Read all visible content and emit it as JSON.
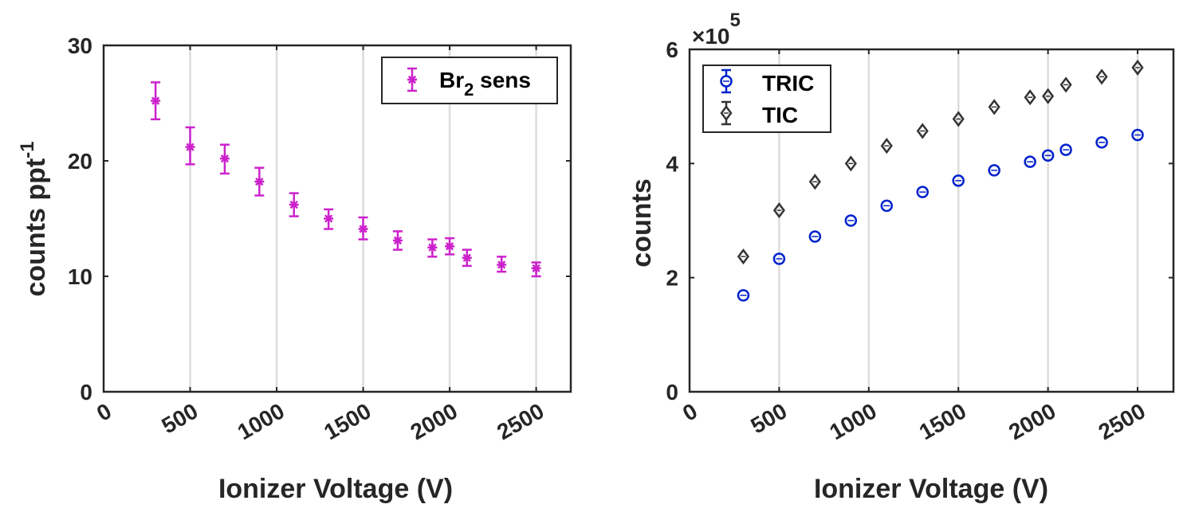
{
  "chart_data": [
    {
      "type": "scatter",
      "title": "",
      "xlabel": "Ionizer Voltage (V)",
      "ylabel": "counts ppt",
      "ylabel_superscript": "-1",
      "xlim": [
        0,
        2700
      ],
      "ylim": [
        0,
        30
      ],
      "xticks": [
        0,
        500,
        1000,
        1500,
        2000,
        2500
      ],
      "xtick_labels": [
        "0",
        "500",
        "1000",
        "1500",
        "2000",
        "2500"
      ],
      "yticks": [
        0,
        10,
        20,
        30
      ],
      "ytick_labels": [
        "0",
        "10",
        "20",
        "30"
      ],
      "grid": "x",
      "legend_position": "top-right",
      "series": [
        {
          "name": "Br2 sens",
          "legend_main": "Br",
          "legend_sub": "2",
          "legend_rest": " sens",
          "color": "#CC22CC",
          "marker": "asterisk",
          "x": [
            300,
            500,
            700,
            900,
            1100,
            1300,
            1500,
            1700,
            1900,
            2000,
            2100,
            2300,
            2500
          ],
          "y": [
            25.2,
            21.2,
            20.2,
            18.2,
            16.2,
            15.0,
            14.1,
            13.1,
            12.5,
            12.6,
            11.6,
            11.0,
            10.7
          ],
          "err_low": [
            23.6,
            19.7,
            18.9,
            17.0,
            15.2,
            14.1,
            13.2,
            12.3,
            11.7,
            11.9,
            10.9,
            10.4,
            10.0
          ],
          "err_high": [
            26.8,
            22.9,
            21.4,
            19.4,
            17.2,
            15.8,
            15.1,
            13.9,
            13.2,
            13.3,
            12.3,
            11.7,
            11.2
          ]
        }
      ]
    },
    {
      "type": "scatter",
      "title": "",
      "xlabel": "Ionizer Voltage (V)",
      "ylabel": "counts",
      "y_multiplier": "×10",
      "y_multiplier_exp": "5",
      "xlim": [
        0,
        2700
      ],
      "ylim": [
        0,
        6
      ],
      "xticks": [
        0,
        500,
        1000,
        1500,
        2000,
        2500
      ],
      "xtick_labels": [
        "0",
        "500",
        "1000",
        "1500",
        "2000",
        "2500"
      ],
      "yticks": [
        0,
        2,
        4,
        6
      ],
      "ytick_labels": [
        "0",
        "2",
        "4",
        "6"
      ],
      "grid": "x",
      "legend_position": "top-left",
      "series": [
        {
          "name": "TRIC",
          "color": "#0022CC",
          "marker": "circle",
          "x": [
            300,
            500,
            700,
            900,
            1100,
            1300,
            1500,
            1700,
            1900,
            2000,
            2100,
            2300,
            2500
          ],
          "y": [
            1.69,
            2.33,
            2.72,
            3.0,
            3.26,
            3.5,
            3.7,
            3.88,
            4.03,
            4.14,
            4.24,
            4.37,
            4.5
          ]
        },
        {
          "name": "TIC",
          "color": "#333333",
          "marker": "diamond",
          "x": [
            300,
            500,
            700,
            900,
            1100,
            1300,
            1500,
            1700,
            1900,
            2000,
            2100,
            2300,
            2500
          ],
          "y": [
            2.37,
            3.18,
            3.68,
            4.0,
            4.31,
            4.57,
            4.78,
            4.99,
            5.16,
            5.18,
            5.38,
            5.52,
            5.68
          ]
        }
      ]
    }
  ]
}
